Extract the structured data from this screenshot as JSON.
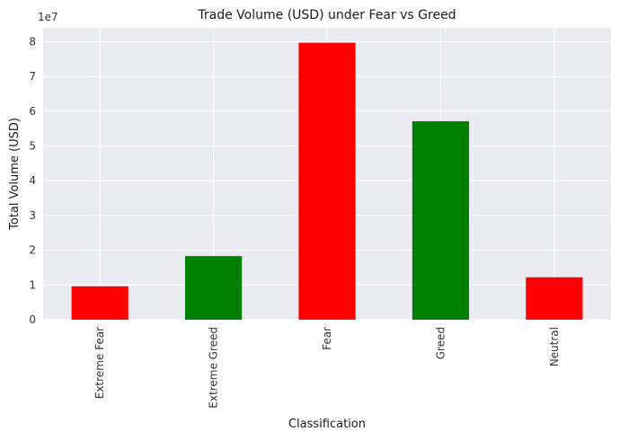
{
  "chart_data": {
    "type": "bar",
    "title": "Trade Volume (USD) under Fear vs Greed",
    "xlabel": "Classification",
    "ylabel": "Total Volume (USD)",
    "y_offset_label": "1e7",
    "y_scale": 10000000,
    "categories": [
      "Extreme Fear",
      "Extreme Greed",
      "Fear",
      "Greed",
      "Neutral"
    ],
    "values": [
      9600000,
      18300000,
      79700000,
      57100000,
      12200000
    ],
    "bar_colors": [
      "#ff0000",
      "#008000",
      "#ff0000",
      "#008000",
      "#ff0000"
    ],
    "ylim": [
      0,
      84000000
    ],
    "yticks": [
      0,
      10000000,
      20000000,
      30000000,
      40000000,
      50000000,
      60000000,
      70000000,
      80000000
    ],
    "ytick_labels": [
      "0",
      "1",
      "2",
      "3",
      "4",
      "5",
      "6",
      "7",
      "8"
    ],
    "grid": true,
    "background": "#eaeaf2",
    "gridline_color": "#ffffff"
  }
}
